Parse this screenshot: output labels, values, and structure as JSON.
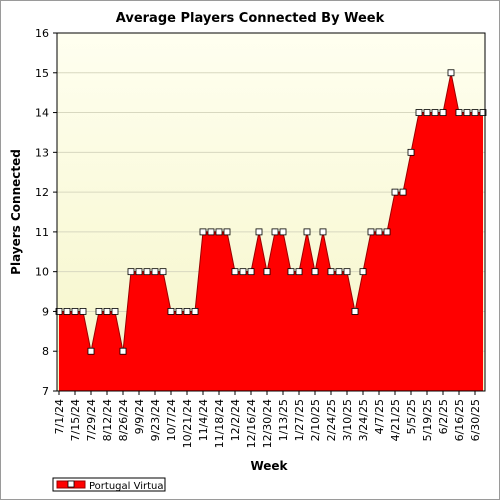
{
  "chart_data": {
    "type": "area",
    "title": "Average Players Connected By Week",
    "xlabel": "Week",
    "ylabel": "Players Connected",
    "ylim": [
      7,
      16
    ],
    "yticks": [
      7,
      8,
      9,
      10,
      11,
      12,
      13,
      14,
      15,
      16
    ],
    "x_tick_labels": [
      "7/1/24",
      "7/15/24",
      "7/29/24",
      "8/12/24",
      "8/26/24",
      "9/9/24",
      "9/23/24",
      "10/7/24",
      "10/21/24",
      "11/4/24",
      "11/18/24",
      "12/2/24",
      "12/16/24",
      "12/30/24",
      "1/13/25",
      "1/27/25",
      "2/10/25",
      "2/24/25",
      "3/10/25",
      "3/24/25",
      "4/7/25",
      "4/21/25",
      "5/5/25",
      "5/19/25",
      "6/2/25",
      "6/16/25",
      "6/30/25"
    ],
    "x": [
      "7/1/24",
      "7/8/24",
      "7/15/24",
      "7/22/24",
      "7/29/24",
      "8/5/24",
      "8/12/24",
      "8/19/24",
      "8/26/24",
      "9/2/24",
      "9/9/24",
      "9/16/24",
      "9/23/24",
      "9/30/24",
      "10/7/24",
      "10/14/24",
      "10/21/24",
      "10/28/24",
      "11/4/24",
      "11/11/24",
      "11/18/24",
      "11/25/24",
      "12/2/24",
      "12/9/24",
      "12/16/24",
      "12/23/24",
      "12/30/24",
      "1/6/25",
      "1/13/25",
      "1/20/25",
      "1/27/25",
      "2/3/25",
      "2/10/25",
      "2/17/25",
      "2/24/25",
      "3/3/25",
      "3/10/25",
      "3/17/25",
      "3/24/25",
      "3/31/25",
      "4/7/25",
      "4/14/25",
      "4/21/25",
      "4/28/25",
      "5/5/25",
      "5/12/25",
      "5/19/25",
      "5/26/25",
      "6/2/25",
      "6/9/25",
      "6/16/25",
      "6/23/25",
      "6/30/25",
      "7/7/25"
    ],
    "series": [
      {
        "name": "Portugal Virtual",
        "values": [
          9,
          9,
          9,
          9,
          8,
          9,
          9,
          9,
          8,
          10,
          10,
          10,
          10,
          10,
          9,
          9,
          9,
          9,
          11,
          11,
          11,
          11,
          10,
          10,
          10,
          11,
          10,
          11,
          11,
          10,
          10,
          11,
          10,
          11,
          10,
          10,
          10,
          9,
          10,
          11,
          11,
          11,
          12,
          12,
          13,
          14,
          14,
          14,
          14,
          15,
          14,
          14,
          14,
          14
        ]
      }
    ],
    "grid": true,
    "legend": "bottom-left",
    "colors": {
      "area": "#ff0000",
      "line": "#9b0000",
      "plot_bg_top": "#fffff0",
      "plot_bg_bottom": "#f5f5c8"
    }
  }
}
